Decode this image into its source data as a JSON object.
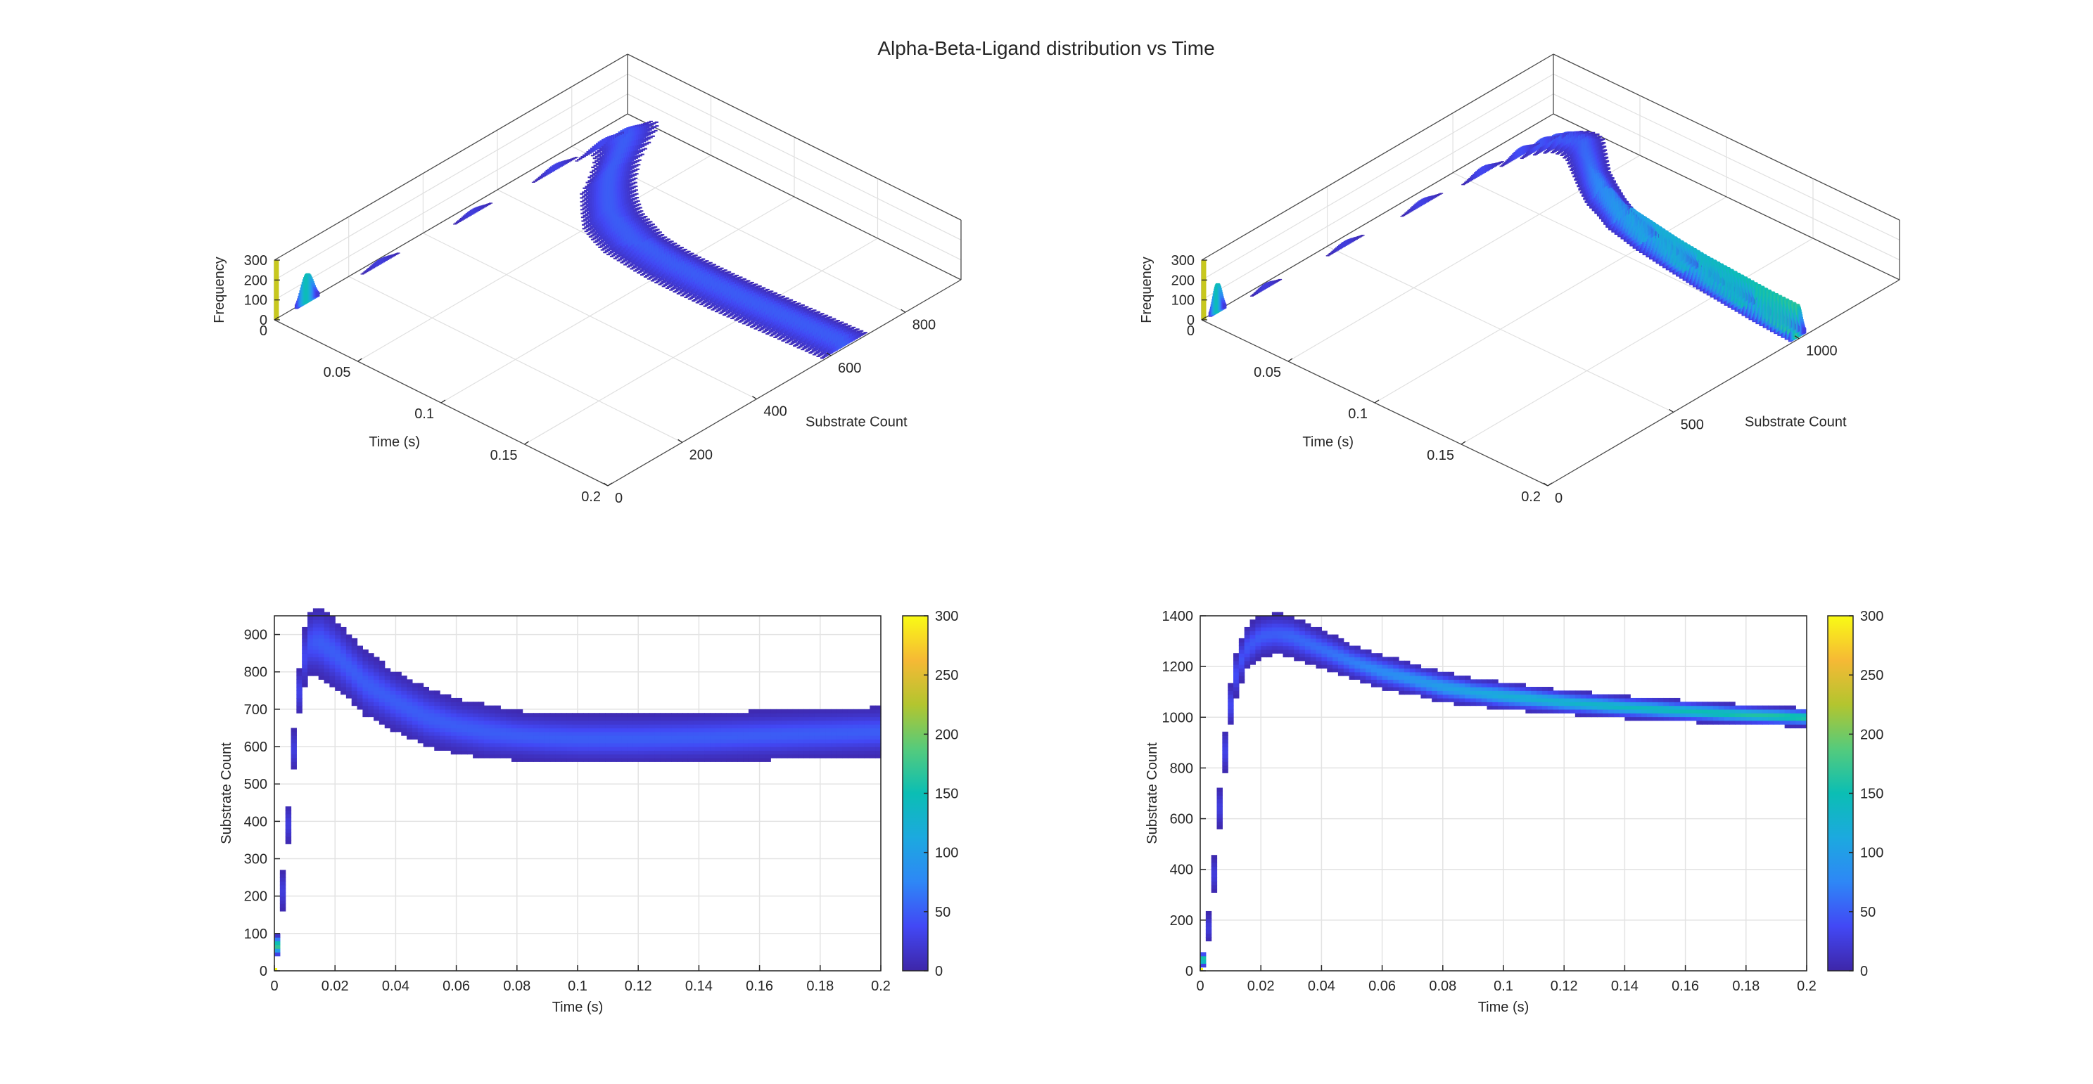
{
  "figure": {
    "title": "Alpha-Beta-Ligand distribution vs Time"
  },
  "colormap": {
    "name": "parula",
    "stops": [
      "#3e26a8",
      "#4248f5",
      "#2e87f6",
      "#1ca9df",
      "#0bbeb4",
      "#55cb7c",
      "#b3c52f",
      "#f6b935",
      "#f9fb15"
    ]
  },
  "chart_data": [
    {
      "type": "histogram3d",
      "panel": "top-left",
      "title": "",
      "xlabel": "Time (s)",
      "ylabel": "Substrate Count",
      "zlabel": "Frequency",
      "xlim": [
        0,
        0.2
      ],
      "ylim": [
        0,
        950
      ],
      "zlim": [
        0,
        300
      ],
      "xticks": [
        0,
        0.05,
        0.1,
        0.15,
        0.2
      ],
      "xticklabels": [
        "0",
        "0.05",
        "0.1",
        "0.15",
        "0.2"
      ],
      "yticks": [
        0,
        200,
        400,
        600,
        800
      ],
      "yticklabels": [
        "0",
        "200",
        "400",
        "600",
        "800"
      ],
      "zticks": [
        0,
        100,
        200,
        300
      ],
      "zticklabels": [
        "0",
        "100",
        "200",
        "300"
      ],
      "ridge": {
        "t": [
          0,
          0.002,
          0.004,
          0.006,
          0.008,
          0.01,
          0.012,
          0.015,
          0.02,
          0.025,
          0.03,
          0.04,
          0.05,
          0.06,
          0.07,
          0.08,
          0.09,
          0.1,
          0.12,
          0.14,
          0.16,
          0.18,
          0.2
        ],
        "center": [
          0,
          150,
          330,
          560,
          740,
          840,
          880,
          880,
          850,
          810,
          770,
          720,
          680,
          655,
          640,
          630,
          625,
          622,
          622,
          625,
          630,
          635,
          640
        ],
        "halfwidth": [
          0,
          40,
          40,
          40,
          45,
          55,
          60,
          65,
          65,
          60,
          60,
          55,
          55,
          50,
          50,
          45,
          45,
          45,
          45,
          45,
          45,
          45,
          45
        ],
        "peak_frequency": [
          300,
          25,
          25,
          25,
          30,
          35,
          45,
          50,
          50,
          50,
          50,
          50,
          50,
          50,
          50,
          50,
          50,
          50,
          50,
          50,
          50,
          50,
          50
        ]
      }
    },
    {
      "type": "histogram3d",
      "panel": "top-right",
      "title": "",
      "xlabel": "Time (s)",
      "ylabel": "Substrate Count",
      "zlabel": "Frequency",
      "xlim": [
        0,
        0.2
      ],
      "ylim": [
        0,
        1400
      ],
      "zlim": [
        0,
        300
      ],
      "xticks": [
        0,
        0.05,
        0.1,
        0.15,
        0.2
      ],
      "xticklabels": [
        "0",
        "0.05",
        "0.1",
        "0.15",
        "0.2"
      ],
      "yticks": [
        0,
        500,
        1000
      ],
      "yticklabels": [
        "0",
        "500",
        "1000"
      ],
      "zticks": [
        0,
        100,
        200,
        300
      ],
      "zticklabels": [
        "0",
        "100",
        "200",
        "300"
      ],
      "ridge": {
        "t": [
          0,
          0.002,
          0.004,
          0.006,
          0.008,
          0.01,
          0.012,
          0.015,
          0.02,
          0.025,
          0.03,
          0.04,
          0.05,
          0.06,
          0.07,
          0.08,
          0.09,
          0.1,
          0.12,
          0.14,
          0.16,
          0.18,
          0.2
        ],
        "center": [
          0,
          100,
          300,
          600,
          850,
          1050,
          1180,
          1270,
          1320,
          1330,
          1320,
          1270,
          1220,
          1180,
          1150,
          1120,
          1100,
          1085,
          1060,
          1040,
          1025,
          1010,
          1000
        ],
        "halfwidth": [
          0,
          40,
          50,
          60,
          60,
          60,
          60,
          60,
          55,
          55,
          55,
          50,
          45,
          45,
          40,
          40,
          35,
          35,
          30,
          28,
          26,
          24,
          22
        ],
        "peak_frequency": [
          300,
          25,
          25,
          25,
          30,
          35,
          40,
          45,
          50,
          50,
          55,
          60,
          70,
          80,
          90,
          100,
          110,
          120,
          130,
          140,
          150,
          160,
          170
        ]
      }
    },
    {
      "type": "heatmap",
      "panel": "bottom-left",
      "title": "",
      "xlabel": "Time (s)",
      "ylabel": "Substrate Count",
      "xlim": [
        0,
        0.2
      ],
      "ylim": [
        0,
        950
      ],
      "clim": [
        0,
        300
      ],
      "xticks": [
        0,
        0.02,
        0.04,
        0.06,
        0.08,
        0.1,
        0.12,
        0.14,
        0.16,
        0.18,
        0.2
      ],
      "xticklabels": [
        "0",
        "0.02",
        "0.04",
        "0.06",
        "0.08",
        "0.1",
        "0.12",
        "0.14",
        "0.16",
        "0.18",
        "0.2"
      ],
      "yticks": [
        0,
        100,
        200,
        300,
        400,
        500,
        600,
        700,
        800,
        900
      ],
      "yticklabels": [
        "0",
        "100",
        "200",
        "300",
        "400",
        "500",
        "600",
        "700",
        "800",
        "900"
      ],
      "colorbar_ticks": [
        0,
        50,
        100,
        150,
        200,
        250,
        300
      ],
      "colorbar_ticklabels": [
        "0",
        "50",
        "100",
        "150",
        "200",
        "250",
        "300"
      ],
      "grid": true,
      "ridge_ref": 0
    },
    {
      "type": "heatmap",
      "panel": "bottom-right",
      "title": "",
      "xlabel": "Time (s)",
      "ylabel": "Substrate Count",
      "xlim": [
        0,
        0.2
      ],
      "ylim": [
        0,
        1400
      ],
      "clim": [
        0,
        300
      ],
      "xticks": [
        0,
        0.02,
        0.04,
        0.06,
        0.08,
        0.1,
        0.12,
        0.14,
        0.16,
        0.18,
        0.2
      ],
      "xticklabels": [
        "0",
        "0.02",
        "0.04",
        "0.06",
        "0.08",
        "0.1",
        "0.12",
        "0.14",
        "0.16",
        "0.18",
        "0.2"
      ],
      "yticks": [
        0,
        200,
        400,
        600,
        800,
        1000,
        1200,
        1400
      ],
      "yticklabels": [
        "0",
        "200",
        "400",
        "600",
        "800",
        "1000",
        "1200",
        "1400"
      ],
      "colorbar_ticks": [
        0,
        50,
        100,
        150,
        200,
        250,
        300
      ],
      "colorbar_ticklabels": [
        "0",
        "50",
        "100",
        "150",
        "200",
        "250",
        "300"
      ],
      "grid": true,
      "ridge_ref": 1
    }
  ]
}
